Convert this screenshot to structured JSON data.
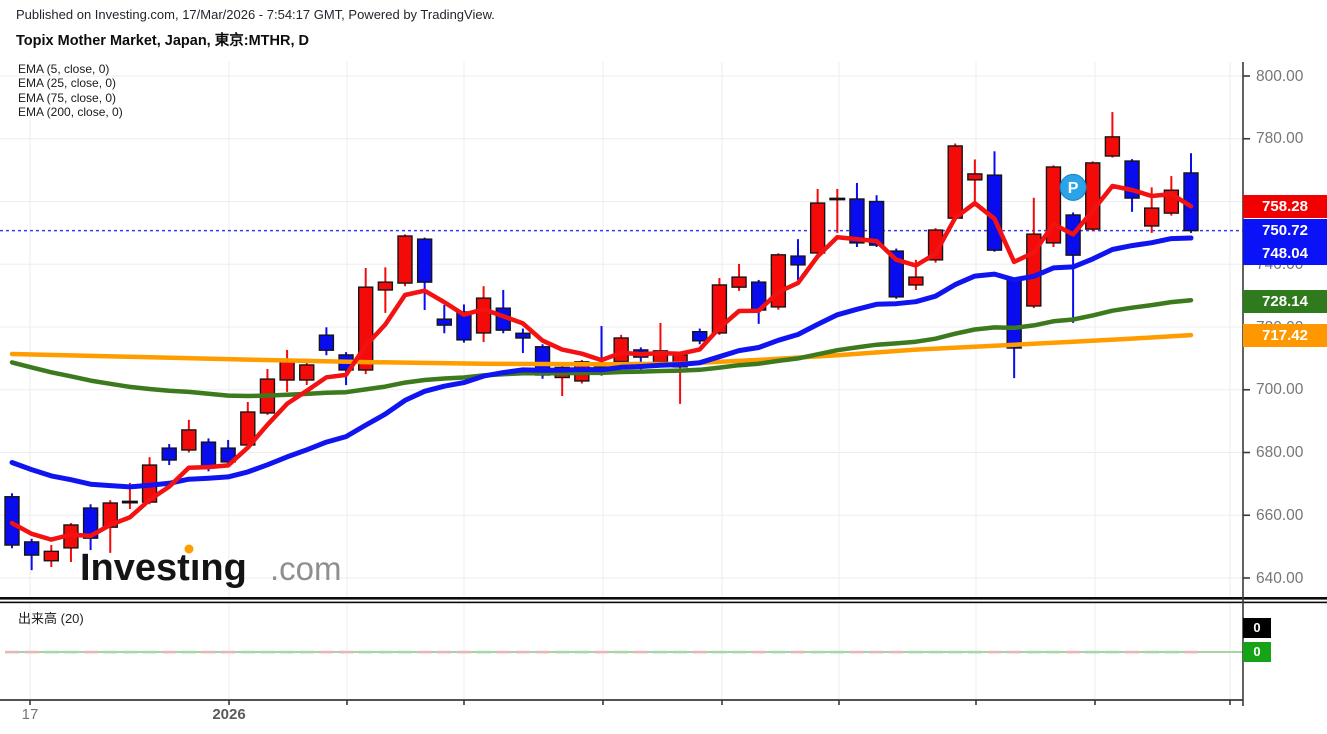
{
  "header": {
    "published_line": "Published on Investing.com, 17/Mar/2026 - 7:54:17 GMT, Powered by TradingView.",
    "title": "Topix Mother Market, Japan, 東京:MTHR, D"
  },
  "legend": {
    "items": [
      "EMA (5, close, 0)",
      "EMA (25, close, 0)",
      "EMA (75, close, 0)",
      "EMA (200, close, 0)"
    ]
  },
  "watermark": {
    "main": "Investing",
    "suffix": ".com",
    "accent_color": "#ff9d00"
  },
  "chart_data": {
    "type": "candlestick",
    "title": "Topix Mother Market, Japan",
    "symbol": "東京:MTHR",
    "interval": "D",
    "colors": {
      "up_candle": "#f50a0a",
      "down_candle": "#0a0cf0",
      "candle_border": "#151515",
      "ema5": "#f31111",
      "ema25": "#1014f0",
      "ema75": "#3d7a1e",
      "ema200": "#ff9d00",
      "last_price_line": "#3b3bff",
      "grid": "#ededed",
      "axis": "#3a3a3a"
    },
    "price_axis": {
      "min": 640,
      "max": 800,
      "tick_step": 20,
      "tick_labels": [
        "800.00",
        "780.00",
        "740.00",
        "720.00",
        "700.00",
        "680.00",
        "660.00",
        "640.00"
      ]
    },
    "x_axis": {
      "tick_positions": [
        30,
        229,
        347,
        464,
        603,
        722,
        839,
        976,
        1095,
        1230
      ],
      "labels": [
        {
          "text": "17",
          "x": 30,
          "bold": false
        },
        {
          "text": "2026",
          "x": 229,
          "bold": true
        }
      ]
    },
    "last_close": 750.72,
    "candles": [
      [
        665.9,
        667.0,
        649.5,
        650.5
      ],
      [
        651.5,
        652.5,
        642.5,
        647.3
      ],
      [
        645.5,
        650.5,
        643.5,
        648.5
      ],
      [
        649.6,
        657.5,
        645.1,
        656.9
      ],
      [
        662.3,
        663.5,
        648.9,
        652.7
      ],
      [
        656.2,
        664.8,
        648.0,
        663.9
      ],
      [
        664.2,
        670.3,
        662.0,
        664.2
      ],
      [
        664.2,
        678.5,
        663.5,
        676.0
      ],
      [
        681.4,
        682.7,
        676.0,
        677.6
      ],
      [
        680.8,
        690.4,
        680.0,
        687.2
      ],
      [
        683.3,
        684.5,
        674.0,
        675.7
      ],
      [
        681.4,
        684.0,
        676.0,
        677.0
      ],
      [
        682.4,
        696.1,
        681.5,
        692.9
      ],
      [
        692.6,
        706.6,
        692.0,
        703.4
      ],
      [
        703.1,
        712.7,
        699.3,
        708.9
      ],
      [
        703.1,
        709.0,
        701.5,
        707.9
      ],
      [
        717.4,
        719.9,
        711.0,
        712.6
      ],
      [
        711.1,
        712.0,
        701.5,
        706.3
      ],
      [
        706.3,
        738.8,
        705.0,
        732.7
      ],
      [
        731.8,
        739.0,
        724.5,
        734.3
      ],
      [
        734.0,
        749.5,
        733.0,
        749.0
      ],
      [
        748.0,
        748.5,
        725.4,
        734.3
      ],
      [
        722.5,
        727.0,
        718.0,
        720.6
      ],
      [
        724.8,
        727.2,
        715.0,
        715.9
      ],
      [
        718.1,
        733.0,
        715.2,
        729.2
      ],
      [
        726.0,
        731.8,
        718.0,
        719.0
      ],
      [
        718.0,
        719.5,
        711.7,
        716.5
      ],
      [
        713.7,
        714.5,
        703.5,
        704.7
      ],
      [
        703.9,
        708.0,
        698.0,
        707.1
      ],
      [
        702.8,
        709.5,
        702.0,
        708.9
      ],
      [
        707.2,
        720.3,
        704.5,
        705.3
      ],
      [
        709.0,
        717.5,
        708.0,
        716.5
      ],
      [
        712.7,
        713.5,
        705.7,
        710.4
      ],
      [
        708.9,
        721.3,
        708.0,
        712.4
      ],
      [
        707.3,
        712.0,
        695.5,
        711.1
      ],
      [
        718.5,
        719.5,
        714.5,
        715.6
      ],
      [
        718.1,
        735.6,
        717.5,
        733.4
      ],
      [
        732.7,
        740.1,
        731.5,
        735.9
      ],
      [
        734.3,
        735.0,
        721.0,
        725.4
      ],
      [
        726.4,
        743.5,
        725.5,
        743.0
      ],
      [
        742.6,
        748.0,
        735.0,
        739.8
      ],
      [
        743.6,
        764.0,
        743.0,
        759.5
      ],
      [
        760.3,
        764.0,
        750.0,
        760.8
      ],
      [
        760.8,
        765.9,
        745.5,
        746.8
      ],
      [
        760.0,
        762.0,
        745.5,
        746.1
      ],
      [
        744.2,
        745.0,
        729.0,
        729.6
      ],
      [
        733.4,
        741.4,
        731.8,
        735.9
      ],
      [
        741.4,
        751.5,
        740.5,
        750.9
      ],
      [
        754.7,
        778.5,
        754.0,
        777.7
      ],
      [
        766.9,
        773.4,
        759.4,
        768.8
      ],
      [
        768.4,
        776.0,
        744.0,
        744.5
      ],
      [
        735.0,
        735.5,
        703.7,
        713.3
      ],
      [
        726.7,
        761.2,
        726.0,
        749.6
      ],
      [
        746.8,
        771.5,
        745.5,
        771.0
      ],
      [
        755.7,
        756.5,
        721.3,
        742.9
      ],
      [
        751.2,
        772.8,
        750.5,
        772.3
      ],
      [
        774.5,
        788.5,
        774.0,
        780.6
      ],
      [
        772.9,
        773.5,
        756.7,
        761.1
      ],
      [
        752.2,
        764.5,
        750.0,
        757.9
      ],
      [
        756.3,
        768.1,
        755.5,
        763.6
      ],
      [
        769.1,
        775.4,
        750.0,
        750.72
      ]
    ],
    "emas": {
      "ema5": {
        "period": 5,
        "seed": 661,
        "current": 758.28
      },
      "ema25": {
        "period": 25,
        "seed": 679,
        "current": 748.04
      },
      "ema75": {
        "period": 75,
        "seed": 710.3,
        "current": 728.14
      },
      "ema200": {
        "period": 200,
        "current": 717.42,
        "points": [
          [
            0,
            711.4
          ],
          [
            6,
            710.5
          ],
          [
            12,
            709.6
          ],
          [
            18,
            708.8
          ],
          [
            24,
            708.3
          ],
          [
            30,
            708.1
          ],
          [
            34,
            708.3
          ],
          [
            38,
            709.5
          ],
          [
            42,
            711.0
          ],
          [
            46,
            712.8
          ],
          [
            50,
            714.0
          ],
          [
            54,
            715.3
          ],
          [
            57,
            716.3
          ],
          [
            60,
            717.42
          ]
        ]
      }
    },
    "price_badges": [
      {
        "text": "758.28",
        "value": 758.28,
        "color": "#f20000",
        "series": "ema5"
      },
      {
        "text": "750.72",
        "value": 750.72,
        "color": "#0a12f7",
        "series": "last-price"
      },
      {
        "text": "748.04",
        "value": 748.04,
        "color": "#0a12f7",
        "series": "ema25"
      },
      {
        "text": "728.14",
        "value": 728.14,
        "color": "#2e7a1c",
        "series": "ema75"
      },
      {
        "text": "717.42",
        "value": 717.42,
        "color": "#ff9800",
        "series": "ema200"
      }
    ],
    "marker": {
      "label": "P",
      "index": 54,
      "price": 764.5,
      "color": "#2aa3e8"
    },
    "volume_panel": {
      "label": "出来高 (20)",
      "value_badge": {
        "text": "0",
        "color": "#000000"
      },
      "ma_badge": {
        "text": "0",
        "color": "#17a317"
      },
      "up_color": "#a9d6a9",
      "down_color": "#e7b6ba",
      "ma_color": "#86c886"
    }
  }
}
